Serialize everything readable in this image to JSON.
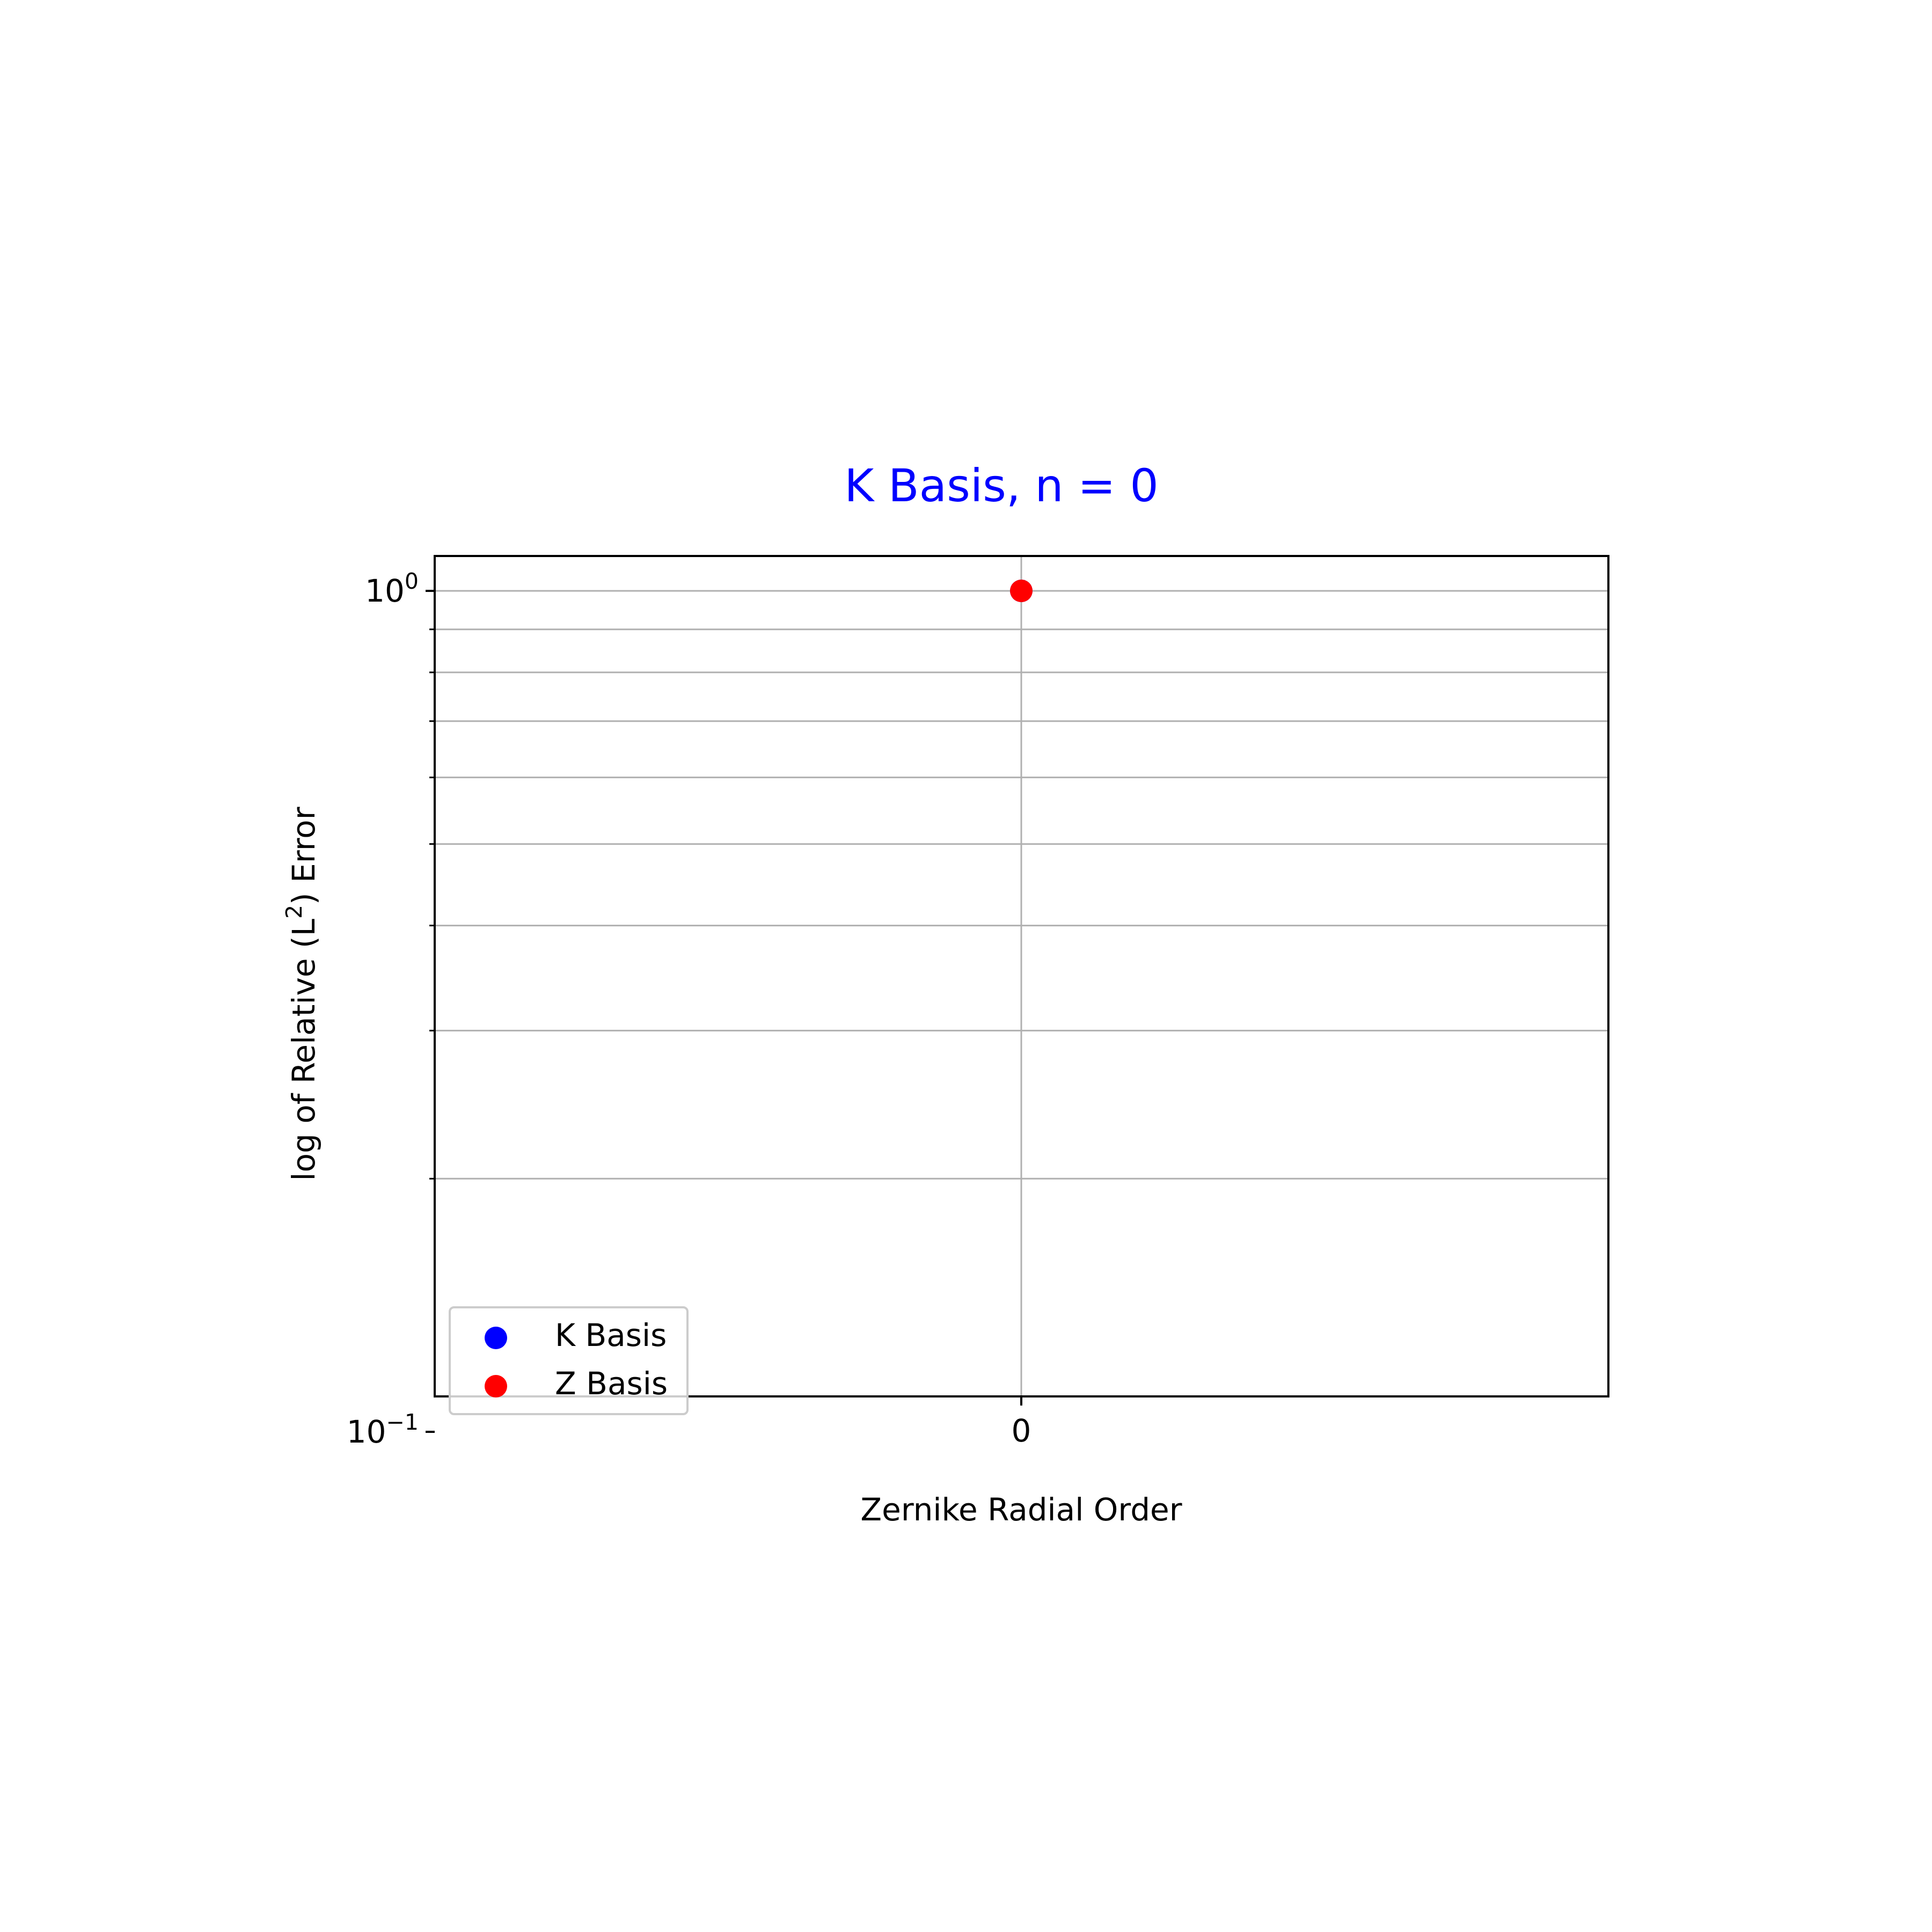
{
  "chart_data": {
    "type": "scatter",
    "title": "K Basis, n = 0",
    "title_color": "#0000ff",
    "xlabel": "Zernike Radial Order",
    "ylabel_prefix": "log of Relative (L",
    "ylabel_sup": "2",
    "ylabel_suffix": ") Error",
    "x_scale": "linear",
    "y_scale": "log",
    "xlim": [
      -1,
      1
    ],
    "ylim": [
      0.1,
      1.0
    ],
    "x_ticks": [
      {
        "value": 0,
        "label": "0"
      }
    ],
    "y_ticks": [
      {
        "value": 1.0,
        "base": "10",
        "exp": "0"
      },
      {
        "value": 0.1,
        "base": "10",
        "exp": "−1"
      }
    ],
    "y_minor_ticks": [
      0.2,
      0.3,
      0.4,
      0.5,
      0.6,
      0.7,
      0.8,
      0.9
    ],
    "grid": true,
    "legend_location": "lower left",
    "series": [
      {
        "name": "K Basis",
        "color": "#0000ff",
        "points": [
          {
            "x": 0,
            "y": 1.0
          }
        ]
      },
      {
        "name": "Z Basis",
        "color": "#ff0000",
        "points": [
          {
            "x": 0,
            "y": 1.0
          }
        ]
      }
    ]
  }
}
